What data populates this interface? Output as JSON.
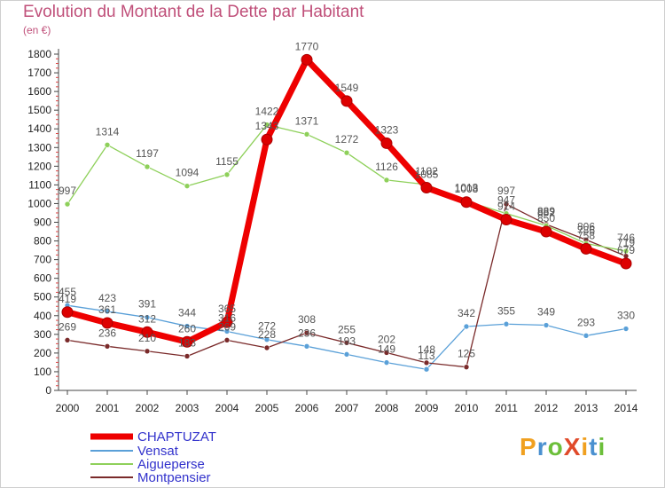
{
  "header": {
    "title": "Evolution du Montant de la Dette par Habitant",
    "unit": "(en €)"
  },
  "logo": {
    "text": "ProXiti",
    "letters": [
      "P",
      "r",
      "o",
      "X",
      "i",
      "t",
      "i"
    ],
    "colors": [
      "#f0a020",
      "#4a90d0",
      "#6cbf3a",
      "#e04a2a",
      "#f0a020",
      "#4a90d0",
      "#6cbf3a"
    ]
  },
  "chart_data": {
    "type": "line",
    "title": "Evolution du Montant de la Dette par Habitant",
    "ylabel": "(en €)",
    "xlabel": "",
    "ylim": [
      0,
      1800
    ],
    "yticks": [
      "0",
      "100",
      "200",
      "300",
      "400",
      "500",
      "600",
      "700",
      "800",
      "900",
      "1000",
      "1100",
      "1200",
      "1300",
      "1400",
      "1500",
      "1600",
      "1700",
      "1800"
    ],
    "x": [
      "2000",
      "2001",
      "2002",
      "2003",
      "2004",
      "2005",
      "2006",
      "2007",
      "2008",
      "2009",
      "2010",
      "2011",
      "2012",
      "2013",
      "2014"
    ],
    "series": [
      {
        "name": "CHAPTUZAT",
        "color": "#ee0000",
        "values": [
          419,
          361,
          312,
          260,
          365,
          1343,
          1770,
          1549,
          1323,
          1085,
          1008,
          914,
          850,
          758,
          679
        ],
        "labels": [
          "419",
          "361",
          "312",
          "260",
          "365",
          "1343",
          "1770",
          "1549",
          "1323",
          "1085",
          "1008",
          "914",
          "850",
          "758",
          "679"
        ]
      },
      {
        "name": "Vensat",
        "color": "#5aa0d8",
        "values": [
          455,
          423,
          391,
          344,
          316,
          272,
          236,
          193,
          149,
          113,
          342,
          355,
          349,
          293,
          330
        ],
        "labels": [
          "455",
          "423",
          "391",
          "344",
          "316",
          "272",
          "236",
          "193",
          "149",
          "113",
          "342",
          "355",
          "349",
          "293",
          "330"
        ]
      },
      {
        "name": "Aigueperse",
        "color": "#8ed05a",
        "values": [
          997,
          1314,
          1197,
          1094,
          1155,
          1422,
          1371,
          1272,
          1126,
          1102,
          1013,
          947,
          882,
          786,
          746
        ],
        "labels": [
          "997",
          "1314",
          "1197",
          "1094",
          "1155",
          "1422",
          "1371",
          "1272",
          "1126",
          "1102",
          "1013",
          "947",
          "882",
          "786",
          "746"
        ]
      },
      {
        "name": "Montpensier",
        "color": "#7a2a2a",
        "values": [
          269,
          236,
          210,
          183,
          269,
          228,
          308,
          255,
          202,
          148,
          125,
          997,
          889,
          806,
          719
        ],
        "labels": [
          "269",
          "236",
          "210",
          "183",
          "269",
          "228",
          "308",
          "255",
          "202",
          "148",
          "125",
          "997",
          "889",
          "806",
          "719"
        ]
      }
    ],
    "legend_position": "bottom-left",
    "grid": false
  }
}
